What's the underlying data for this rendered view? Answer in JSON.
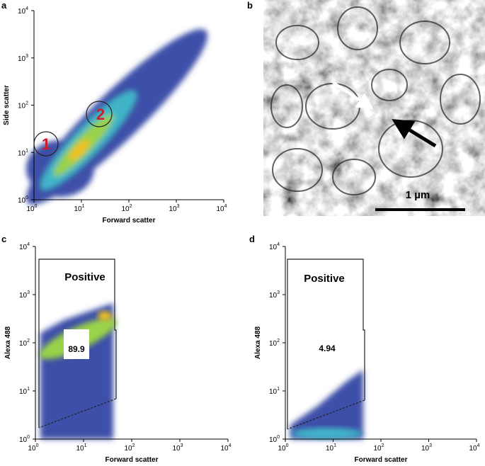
{
  "axis_ticks": [
    {
      "value": 1,
      "label": "10",
      "exponent": "0"
    },
    {
      "value": 10,
      "label": "10",
      "exponent": "1"
    },
    {
      "value": 100,
      "label": "10",
      "exponent": "2"
    },
    {
      "value": 1000,
      "label": "10",
      "exponent": "3"
    },
    {
      "value": 10000,
      "label": "10",
      "exponent": "4"
    }
  ],
  "panels": [
    {
      "letter": "a",
      "x_label": "Forward scatter",
      "y_label": "Side scatter",
      "gates": [
        "1",
        "2"
      ]
    },
    {
      "letter": "b",
      "scale_bar": "1 µm"
    },
    {
      "letter": "c",
      "x_label": "Forward scatter",
      "y_label": "Alexa 488",
      "gate_label": "Positive",
      "gate_value": 89.9
    },
    {
      "letter": "d",
      "x_label": "Forward scatter",
      "y_label": "Alexa 488",
      "gate_label": "Positive",
      "gate_value": 4.94
    }
  ]
}
